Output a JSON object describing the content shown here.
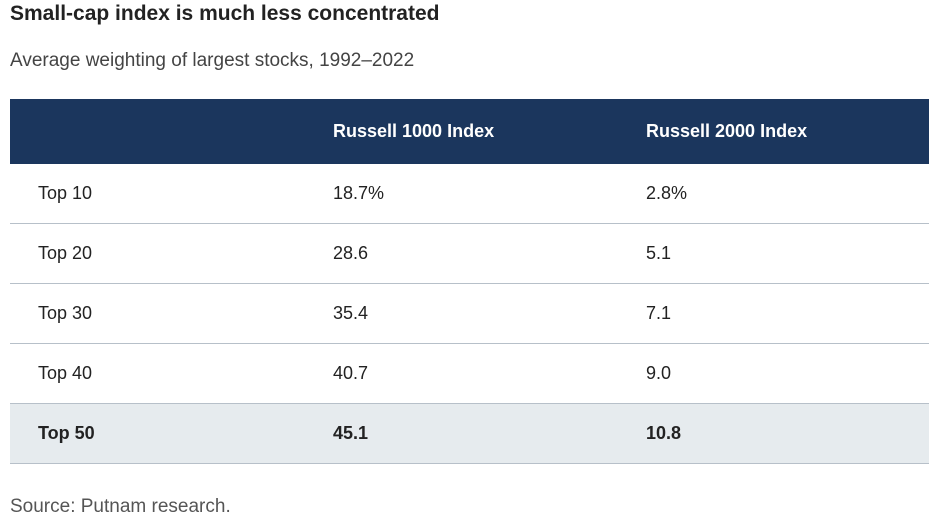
{
  "title": "Small-cap index is much less concentrated",
  "subtitle": "Average weighting of largest stocks, 1992–2022",
  "source": "Source: Putnam research.",
  "colors": {
    "header_bg": "#1b365d",
    "header_text": "#ffffff",
    "total_row_bg": "#e6ebee",
    "row_divider": "#b7c0c9"
  },
  "chart_data": {
    "type": "table",
    "title": "Small-cap index is much less concentrated",
    "subtitle": "Average weighting of largest stocks, 1992–2022",
    "columns": [
      "",
      "Russell 1000 Index",
      "Russell 2000 Index"
    ],
    "rows": [
      {
        "label": "Top 10",
        "values": [
          "18.7%",
          "2.8%"
        ],
        "highlight": false
      },
      {
        "label": "Top 20",
        "values": [
          "28.6",
          "5.1"
        ],
        "highlight": false
      },
      {
        "label": "Top 30",
        "values": [
          "35.4",
          "7.1"
        ],
        "highlight": false
      },
      {
        "label": "Top 40",
        "values": [
          "40.7",
          "9.0"
        ],
        "highlight": false
      },
      {
        "label": "Top 50",
        "values": [
          "45.1",
          "10.8"
        ],
        "highlight": true
      }
    ],
    "series": [
      {
        "name": "Russell 1000 Index",
        "values": [
          18.7,
          28.6,
          35.4,
          40.7,
          45.1
        ]
      },
      {
        "name": "Russell 2000 Index",
        "values": [
          2.8,
          5.1,
          7.1,
          9.0,
          10.8
        ]
      }
    ],
    "categories": [
      "Top 10",
      "Top 20",
      "Top 30",
      "Top 40",
      "Top 50"
    ],
    "unit": "%"
  }
}
